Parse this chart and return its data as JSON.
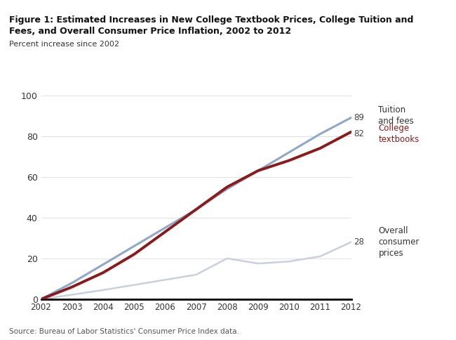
{
  "title_line1": "Figure 1: Estimated Increases in New College Textbook Prices, College Tuition and",
  "title_line2": "Fees, and Overall Consumer Price Inflation, 2002 to 2012",
  "ylabel": "Percent increase since 2002",
  "source": "Source: Bureau of Labor Statistics' Consumer Price Index data.",
  "years": [
    2002,
    2003,
    2004,
    2005,
    2006,
    2007,
    2008,
    2009,
    2010,
    2011,
    2012
  ],
  "tuition_fees": [
    0,
    8,
    17,
    26,
    35,
    44,
    54,
    63,
    72,
    81,
    89
  ],
  "college_textbooks": [
    0,
    6,
    13,
    22,
    33,
    44,
    55,
    63,
    68,
    74,
    82
  ],
  "overall_cpi": [
    0,
    2.2,
    4.5,
    7.0,
    9.5,
    12.0,
    20.0,
    17.5,
    18.5,
    21.0,
    28
  ],
  "tuition_color": "#8fa8c8",
  "textbook_color": "#8b1a1a",
  "cpi_color": "#c8d0e0",
  "end_values": {
    "tuition": 89,
    "textbooks": 82,
    "cpi": 28
  },
  "ylim": [
    0,
    100
  ],
  "xlim_left": 2002,
  "xlim_right": 2012,
  "header_bg_color": "#1a1a1a",
  "chart_bg_color": "#ffffff",
  "label_tuition": [
    "Tuition",
    "and fees"
  ],
  "label_textbooks": [
    "College",
    "textbooks"
  ],
  "label_cpi": [
    "Overall",
    "consumer",
    "prices"
  ],
  "textbook_label_color": "#8b1a1a",
  "tuition_label_color": "#333333",
  "cpi_label_color": "#333333"
}
